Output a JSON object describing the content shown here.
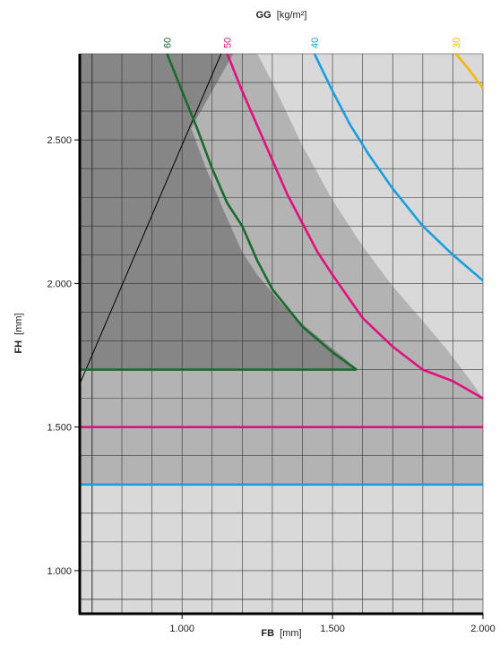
{
  "chart_data": {
    "type": "line",
    "title": "",
    "top_axis": {
      "label_bold": "GG",
      "label_unit": "[kg/m²]"
    },
    "xaxis": {
      "label_bold": "FB",
      "label_unit": "[mm]",
      "lim": [
        660,
        2000
      ],
      "ticks": [
        1000,
        1500,
        2000
      ],
      "tick_labels": [
        "1.000",
        "1.500",
        "2.000"
      ],
      "minor_step": 100
    },
    "yaxis": {
      "label_bold": "FH",
      "label_unit": "[mm]",
      "lim": [
        850,
        2800
      ],
      "ticks": [
        1000,
        1500,
        2000,
        2500
      ],
      "tick_labels": [
        "1.000",
        "1.500",
        "2.000",
        "2.500"
      ],
      "minor_step": 100
    },
    "grid": true,
    "regions": [
      {
        "name": "outer",
        "color": "#d9d9d9",
        "points": [
          [
            660,
            850
          ],
          [
            2000,
            850
          ],
          [
            2000,
            2800
          ],
          [
            660,
            2800
          ]
        ]
      },
      {
        "name": "middle",
        "color": "#b3b3b3",
        "points": [
          [
            660,
            1300
          ],
          [
            2000,
            1300
          ],
          [
            2000,
            1600
          ],
          [
            1960,
            1660
          ],
          [
            1880,
            1770
          ],
          [
            1800,
            1870
          ],
          [
            1700,
            1990
          ],
          [
            1600,
            2130
          ],
          [
            1500,
            2290
          ],
          [
            1400,
            2480
          ],
          [
            1300,
            2700
          ],
          [
            1250,
            2800
          ],
          [
            660,
            2800
          ]
        ]
      },
      {
        "name": "inner",
        "color": "#868686",
        "points": [
          [
            660,
            1650
          ],
          [
            660,
            1700
          ],
          [
            1580,
            1700
          ],
          [
            1540,
            1740
          ],
          [
            1480,
            1790
          ],
          [
            1410,
            1850
          ],
          [
            1330,
            1930
          ],
          [
            1250,
            2030
          ],
          [
            1200,
            2110
          ],
          [
            1140,
            2250
          ],
          [
            1080,
            2400
          ],
          [
            1030,
            2540
          ],
          [
            1170,
            2800
          ],
          [
            660,
            2800
          ]
        ]
      }
    ],
    "boundary_line": {
      "color": "#000000",
      "points": [
        [
          660,
          1650
        ],
        [
          1130,
          2800
        ]
      ]
    },
    "series": [
      {
        "name": "60",
        "color": "#1a6b2e",
        "points": [
          [
            950,
            2800
          ],
          [
            1000,
            2670
          ],
          [
            1050,
            2540
          ],
          [
            1100,
            2400
          ],
          [
            1150,
            2280
          ],
          [
            1200,
            2200
          ],
          [
            1250,
            2080
          ],
          [
            1300,
            1980
          ],
          [
            1400,
            1850
          ],
          [
            1500,
            1760
          ],
          [
            1580,
            1700
          ]
        ],
        "hline": {
          "y": 1700,
          "x_from": 660,
          "x_to": 1580
        }
      },
      {
        "name": "50",
        "color": "#e0117f",
        "points": [
          [
            1150,
            2800
          ],
          [
            1200,
            2670
          ],
          [
            1250,
            2550
          ],
          [
            1300,
            2430
          ],
          [
            1350,
            2310
          ],
          [
            1400,
            2210
          ],
          [
            1450,
            2110
          ],
          [
            1500,
            2030
          ],
          [
            1600,
            1880
          ],
          [
            1700,
            1780
          ],
          [
            1800,
            1700
          ],
          [
            1900,
            1660
          ],
          [
            2000,
            1600
          ]
        ],
        "hline": {
          "y": 1500,
          "x_from": 660,
          "x_to": 2000
        }
      },
      {
        "name": "40",
        "color": "#1a9ee0",
        "points": [
          [
            1440,
            2800
          ],
          [
            1500,
            2670
          ],
          [
            1560,
            2550
          ],
          [
            1620,
            2450
          ],
          [
            1700,
            2330
          ],
          [
            1800,
            2200
          ],
          [
            1900,
            2100
          ],
          [
            2000,
            2010
          ]
        ],
        "hline": {
          "y": 1300,
          "x_from": 660,
          "x_to": 2000
        }
      },
      {
        "name": "30",
        "color": "#f5b800",
        "points": [
          [
            1910,
            2800
          ],
          [
            1950,
            2750
          ],
          [
            2000,
            2680
          ]
        ]
      }
    ]
  }
}
